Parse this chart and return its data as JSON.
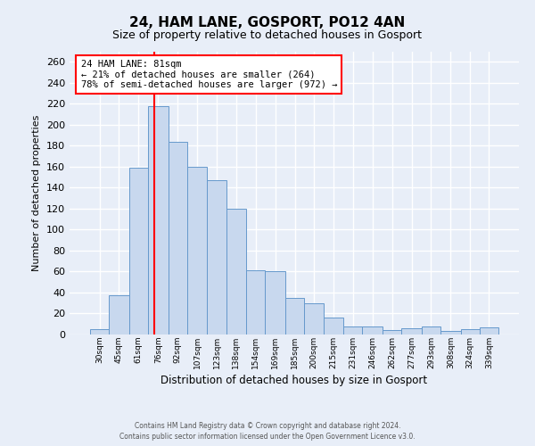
{
  "title": "24, HAM LANE, GOSPORT, PO12 4AN",
  "subtitle": "Size of property relative to detached houses in Gosport",
  "xlabel": "Distribution of detached houses by size in Gosport",
  "ylabel": "Number of detached properties",
  "bar_color": "#c8d8ee",
  "bar_edge_color": "#6699cc",
  "background_color": "#e8eef8",
  "grid_color": "#ffffff",
  "bin_labels": [
    "30sqm",
    "45sqm",
    "61sqm",
    "76sqm",
    "92sqm",
    "107sqm",
    "123sqm",
    "138sqm",
    "154sqm",
    "169sqm",
    "185sqm",
    "200sqm",
    "215sqm",
    "231sqm",
    "246sqm",
    "262sqm",
    "277sqm",
    "293sqm",
    "308sqm",
    "324sqm",
    "339sqm"
  ],
  "bar_heights": [
    5,
    37,
    159,
    218,
    184,
    160,
    147,
    120,
    61,
    60,
    35,
    30,
    16,
    8,
    8,
    4,
    6,
    8,
    3,
    5,
    7
  ],
  "bin_edges": [
    30,
    45,
    61,
    76,
    92,
    107,
    123,
    138,
    154,
    169,
    185,
    200,
    215,
    231,
    246,
    262,
    277,
    293,
    308,
    324,
    339,
    354
  ],
  "ylim": [
    0,
    270
  ],
  "yticks": [
    0,
    20,
    40,
    60,
    80,
    100,
    120,
    140,
    160,
    180,
    200,
    220,
    240,
    260
  ],
  "red_line_x": 81,
  "annotation_title": "24 HAM LANE: 81sqm",
  "annotation_line1": "← 21% of detached houses are smaller (264)",
  "annotation_line2": "78% of semi-detached houses are larger (972) →",
  "footer_line1": "Contains HM Land Registry data © Crown copyright and database right 2024.",
  "footer_line2": "Contains public sector information licensed under the Open Government Licence v3.0."
}
